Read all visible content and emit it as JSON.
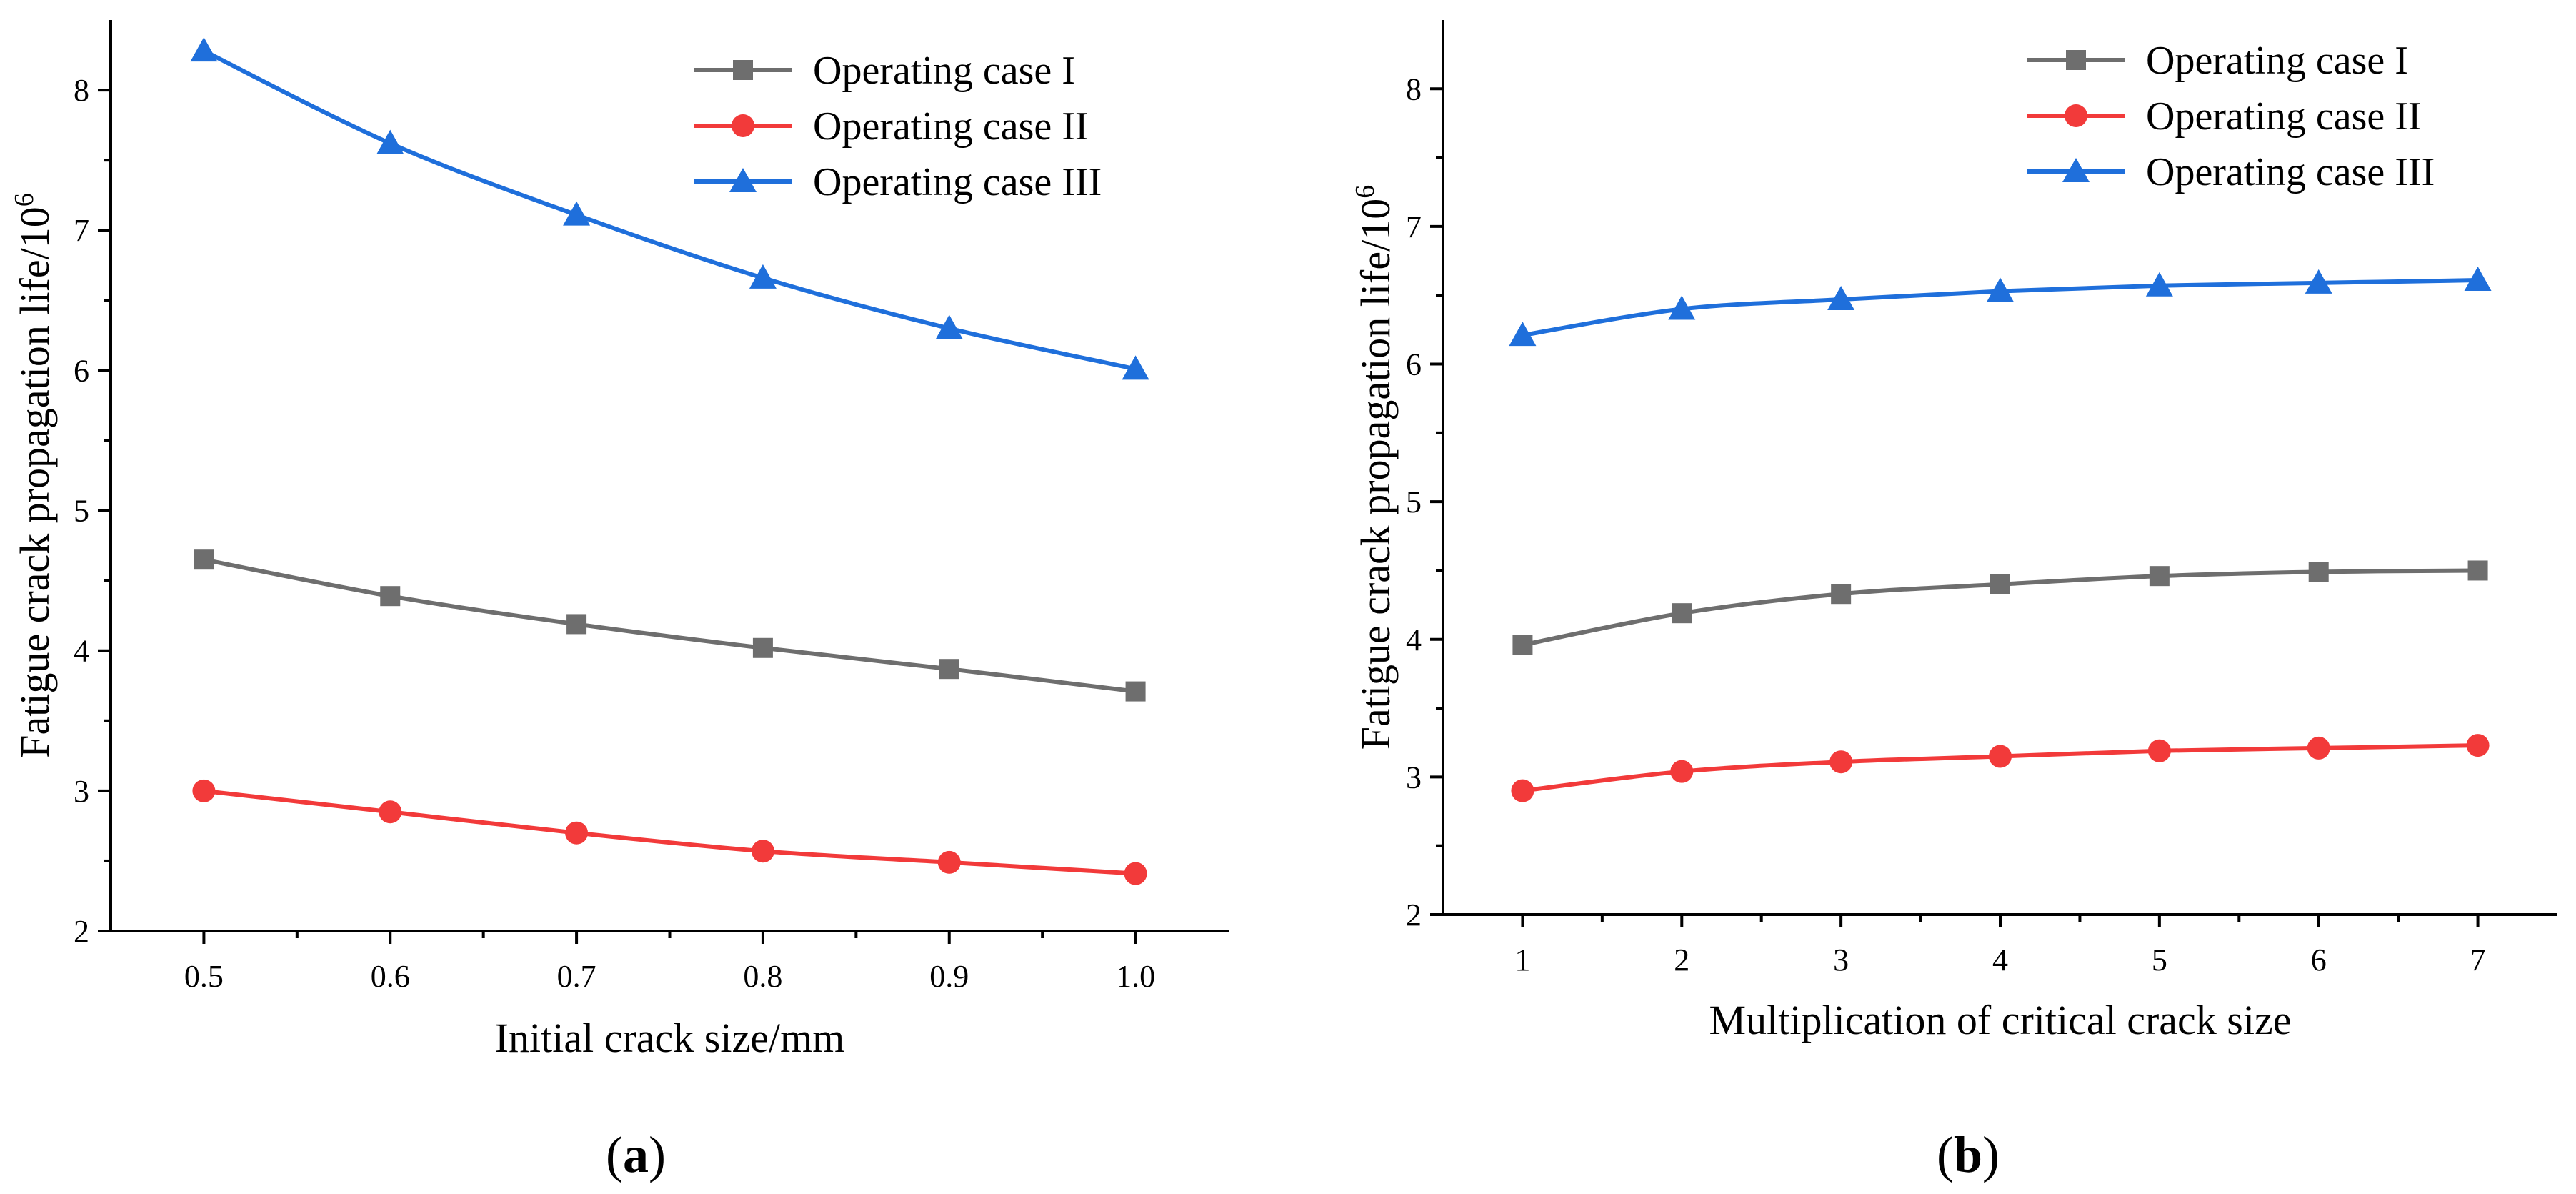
{
  "colors": {
    "case1": "#6e6e6e",
    "case2": "#f23a3a",
    "case3": "#1f6fdb"
  },
  "chart_data": [
    {
      "id": "a",
      "type": "line",
      "panel_label": "a",
      "title": "",
      "xlabel": "Initial crack size/mm",
      "ylabel": "Fatigue crack propagation life/10",
      "ylabel_exponent": "6",
      "xlim": [
        0.45,
        1.05
      ],
      "ylim": [
        2,
        8.5
      ],
      "xticks": [
        0.5,
        0.6,
        0.7,
        0.8,
        0.9,
        1.0
      ],
      "xtick_labels": [
        "0.5",
        "0.6",
        "0.7",
        "0.8",
        "0.9",
        "1.0"
      ],
      "yticks": [
        2,
        3,
        4,
        5,
        6,
        7,
        8
      ],
      "ytick_labels": [
        "2",
        "3",
        "4",
        "5",
        "6",
        "7",
        "8"
      ],
      "legend_position": "top-right",
      "x": [
        0.5,
        0.6,
        0.7,
        0.8,
        0.9,
        1.0
      ],
      "series": [
        {
          "name": "Operating case I",
          "marker": "square",
          "color_key": "case1",
          "values": [
            4.65,
            4.39,
            4.19,
            4.02,
            3.87,
            3.71
          ]
        },
        {
          "name": "Operating case II",
          "marker": "circle",
          "color_key": "case2",
          "values": [
            3.0,
            2.85,
            2.7,
            2.57,
            2.49,
            2.41
          ]
        },
        {
          "name": "Operating case III",
          "marker": "triangle",
          "color_key": "case3",
          "values": [
            8.28,
            7.62,
            7.11,
            6.66,
            6.3,
            6.01
          ]
        }
      ]
    },
    {
      "id": "b",
      "type": "line",
      "panel_label": "b",
      "title": "",
      "xlabel": "Multiplication of critical crack size",
      "ylabel": "Fatigue crack propagation life/10",
      "ylabel_exponent": "6",
      "xlim": [
        0.5,
        7.5
      ],
      "ylim": [
        2,
        8.5
      ],
      "xticks": [
        1,
        2,
        3,
        4,
        5,
        6,
        7
      ],
      "xtick_labels": [
        "1",
        "2",
        "3",
        "4",
        "5",
        "6",
        "7"
      ],
      "yticks": [
        2,
        3,
        4,
        5,
        6,
        7,
        8
      ],
      "ytick_labels": [
        "2",
        "3",
        "4",
        "5",
        "6",
        "7",
        "8"
      ],
      "legend_position": "top-right",
      "x": [
        1,
        2,
        3,
        4,
        5,
        6,
        7
      ],
      "series": [
        {
          "name": "Operating case I",
          "marker": "square",
          "color_key": "case1",
          "values": [
            3.96,
            4.19,
            4.33,
            4.4,
            4.46,
            4.49,
            4.5
          ]
        },
        {
          "name": "Operating case II",
          "marker": "circle",
          "color_key": "case2",
          "values": [
            2.9,
            3.04,
            3.11,
            3.15,
            3.19,
            3.21,
            3.23
          ]
        },
        {
          "name": "Operating case III",
          "marker": "triangle",
          "color_key": "case3",
          "values": [
            6.21,
            6.4,
            6.47,
            6.53,
            6.57,
            6.59,
            6.61
          ]
        }
      ]
    }
  ]
}
